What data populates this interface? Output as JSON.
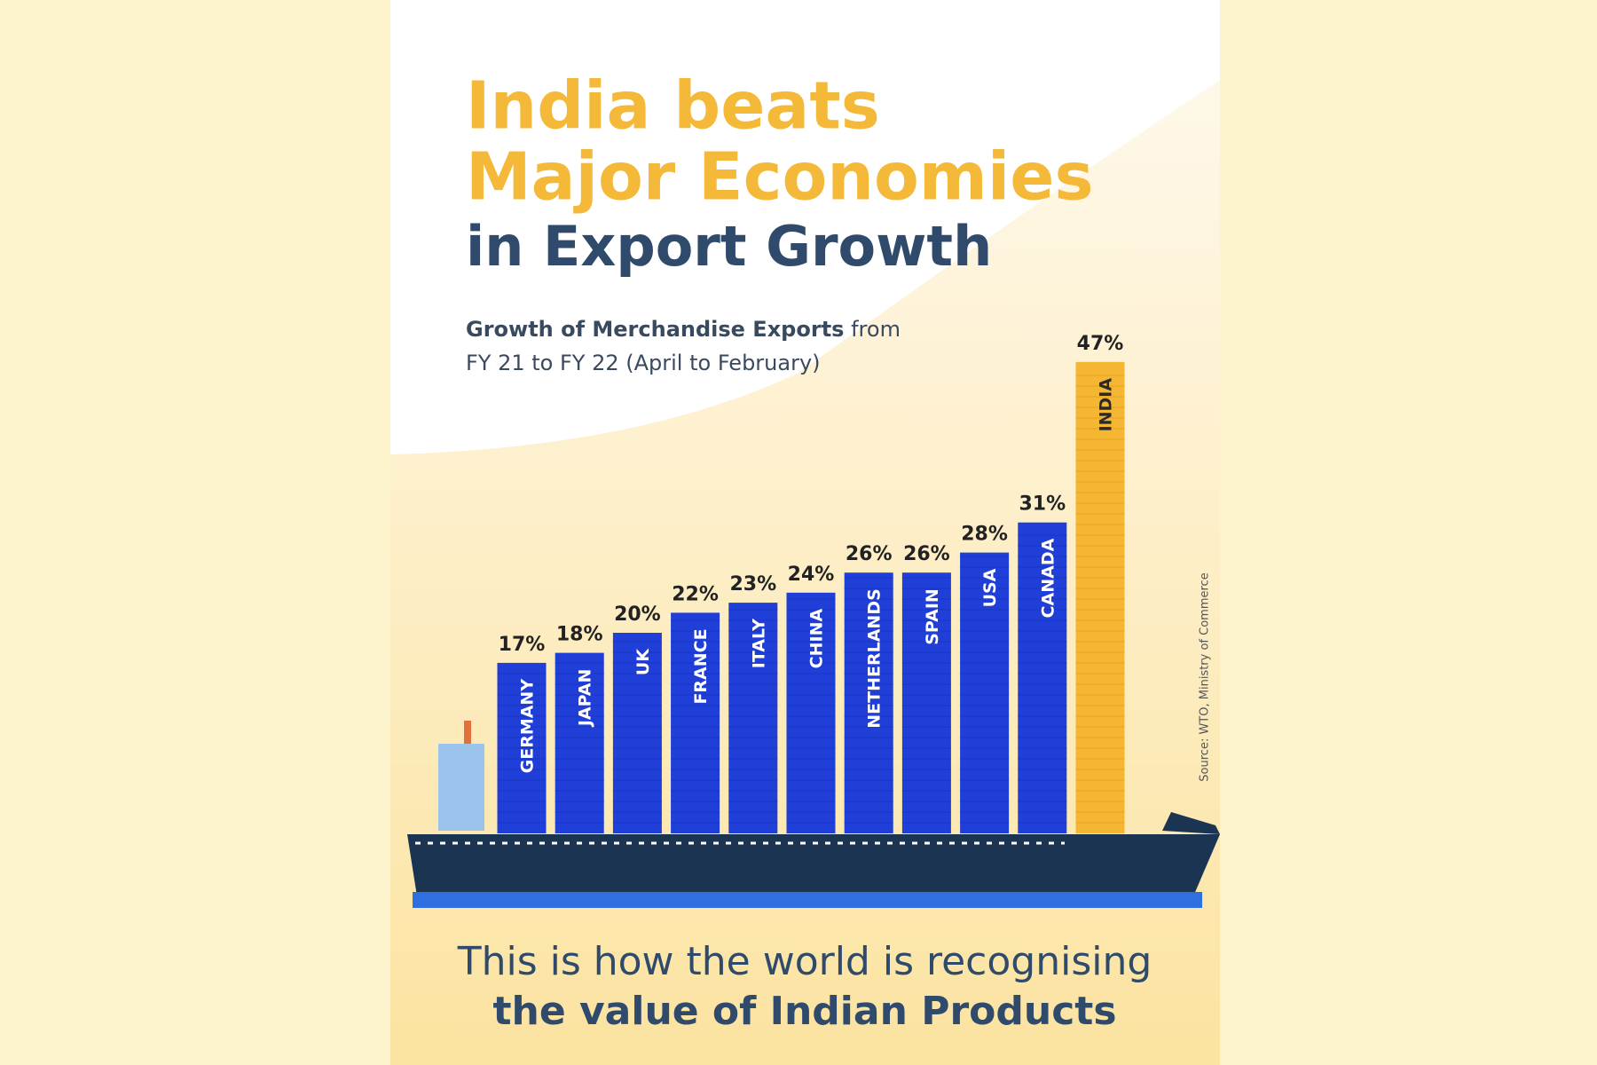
{
  "chart_data": {
    "type": "bar",
    "title": [
      "India beats",
      "Major Economies",
      "in Export Growth"
    ],
    "subtitle": [
      "Growth of Merchandise Exports",
      "from FY 21 to FY 22 (April to February)"
    ],
    "categories": [
      "GERMANY",
      "JAPAN",
      "UK",
      "FRANCE",
      "ITALY",
      "CHINA",
      "NETHERLANDS",
      "SPAIN",
      "USA",
      "CANADA",
      "INDIA"
    ],
    "values": [
      17,
      18,
      20,
      22,
      23,
      24,
      26,
      26,
      28,
      31,
      47
    ],
    "value_labels": [
      "17%",
      "18%",
      "20%",
      "22%",
      "23%",
      "24%",
      "26%",
      "26%",
      "28%",
      "31%",
      "47%"
    ],
    "colors": [
      "#1f3fd8",
      "#1f3fd8",
      "#1f3fd8",
      "#1f3fd8",
      "#1f3fd8",
      "#1f3fd8",
      "#1f3fd8",
      "#1f3fd8",
      "#1f3fd8",
      "#1f3fd8",
      "#f5b733"
    ],
    "footer": [
      "This is how the world is recognising",
      "the value of Indian Products"
    ],
    "source": "Source: WTO, Ministry of Commerce"
  }
}
